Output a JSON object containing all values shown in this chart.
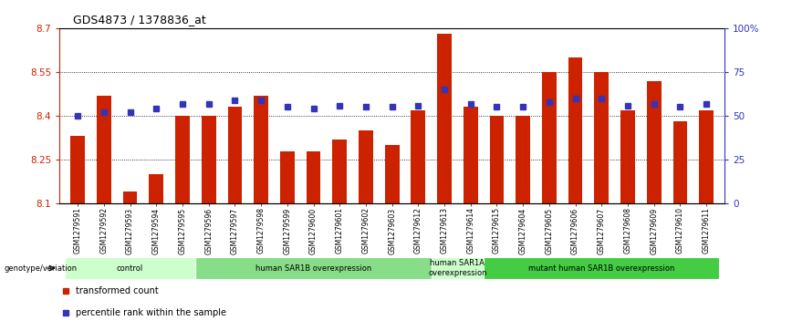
{
  "title": "GDS4873 / 1378836_at",
  "samples": [
    "GSM1279591",
    "GSM1279592",
    "GSM1279593",
    "GSM1279594",
    "GSM1279595",
    "GSM1279596",
    "GSM1279597",
    "GSM1279598",
    "GSM1279599",
    "GSM1279600",
    "GSM1279601",
    "GSM1279602",
    "GSM1279603",
    "GSM1279612",
    "GSM1279613",
    "GSM1279614",
    "GSM1279615",
    "GSM1279604",
    "GSM1279605",
    "GSM1279606",
    "GSM1279607",
    "GSM1279608",
    "GSM1279609",
    "GSM1279610",
    "GSM1279611"
  ],
  "bar_values": [
    8.33,
    8.47,
    8.14,
    8.2,
    8.4,
    8.4,
    8.43,
    8.47,
    8.28,
    8.28,
    8.32,
    8.35,
    8.3,
    8.42,
    8.68,
    8.43,
    8.4,
    8.4,
    8.55,
    8.6,
    8.55,
    8.42,
    8.52,
    8.38,
    8.42
  ],
  "percentile_values": [
    50,
    52,
    52,
    54,
    57,
    57,
    59,
    59,
    55,
    54,
    56,
    55,
    55,
    56,
    65,
    57,
    55,
    55,
    58,
    60,
    60,
    56,
    57,
    55,
    57
  ],
  "ymin": 8.1,
  "ymax": 8.7,
  "yticks": [
    8.1,
    8.25,
    8.4,
    8.55,
    8.7
  ],
  "ytick_labels": [
    "8.1",
    "8.25",
    "8.4",
    "8.55",
    "8.7"
  ],
  "right_yticks": [
    0,
    25,
    50,
    75,
    100
  ],
  "right_ytick_labels": [
    "0",
    "25",
    "50",
    "75",
    "100%"
  ],
  "bar_color": "#cc2200",
  "dot_color": "#3333bb",
  "groups": [
    {
      "label": "control",
      "start": 0,
      "end": 5,
      "color": "#ccffcc"
    },
    {
      "label": "human SAR1B overexpression",
      "start": 5,
      "end": 14,
      "color": "#88dd88"
    },
    {
      "label": "human SAR1A\noverexpression",
      "start": 14,
      "end": 16,
      "color": "#ccffcc"
    },
    {
      "label": "mutant human SAR1B overexpression",
      "start": 16,
      "end": 25,
      "color": "#44cc44"
    }
  ],
  "genotype_label": "genotype/variation",
  "legend_items": [
    {
      "label": "transformed count",
      "color": "#cc2200",
      "marker": "s"
    },
    {
      "label": "percentile rank within the sample",
      "color": "#3333bb",
      "marker": "s"
    }
  ],
  "xtick_bg_color": "#cccccc",
  "fig_bg_color": "#ffffff"
}
